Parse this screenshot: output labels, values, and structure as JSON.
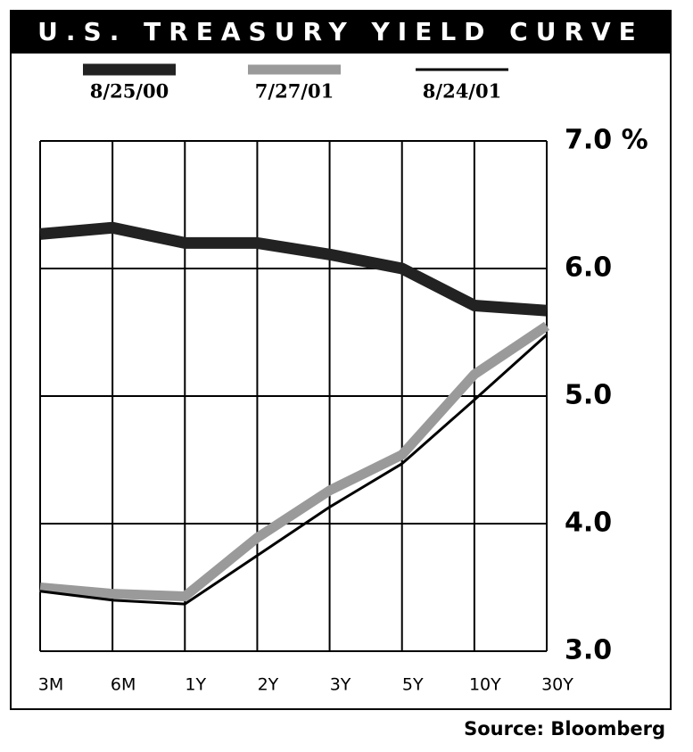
{
  "chart_data": {
    "type": "line",
    "title": "U.S. TREASURY YIELD CURVE",
    "categories": [
      "3M",
      "6M",
      "1Y",
      "2Y",
      "3Y",
      "5Y",
      "10Y",
      "30Y"
    ],
    "series": [
      {
        "name": "8/25/00",
        "color": "#222222",
        "values": [
          6.27,
          6.32,
          6.2,
          6.2,
          6.11,
          6.0,
          5.71,
          5.67
        ]
      },
      {
        "name": "7/27/01",
        "color": "#9a9a9a",
        "values": [
          3.5,
          3.45,
          3.43,
          3.89,
          4.26,
          4.54,
          5.17,
          5.55
        ]
      },
      {
        "name": "8/24/01",
        "color": "#000000",
        "values": [
          3.47,
          3.4,
          3.37,
          3.75,
          4.13,
          4.47,
          4.97,
          5.48
        ]
      }
    ],
    "ylim": [
      3,
      7
    ],
    "yticks": [
      {
        "value": 3,
        "label": "3.0"
      },
      {
        "value": 4,
        "label": "4.0"
      },
      {
        "value": 5,
        "label": "5.0"
      },
      {
        "value": 6,
        "label": "6.0"
      },
      {
        "value": 7,
        "label": "7.0 %"
      }
    ],
    "grid": true,
    "source": "Source: Bloomberg"
  }
}
